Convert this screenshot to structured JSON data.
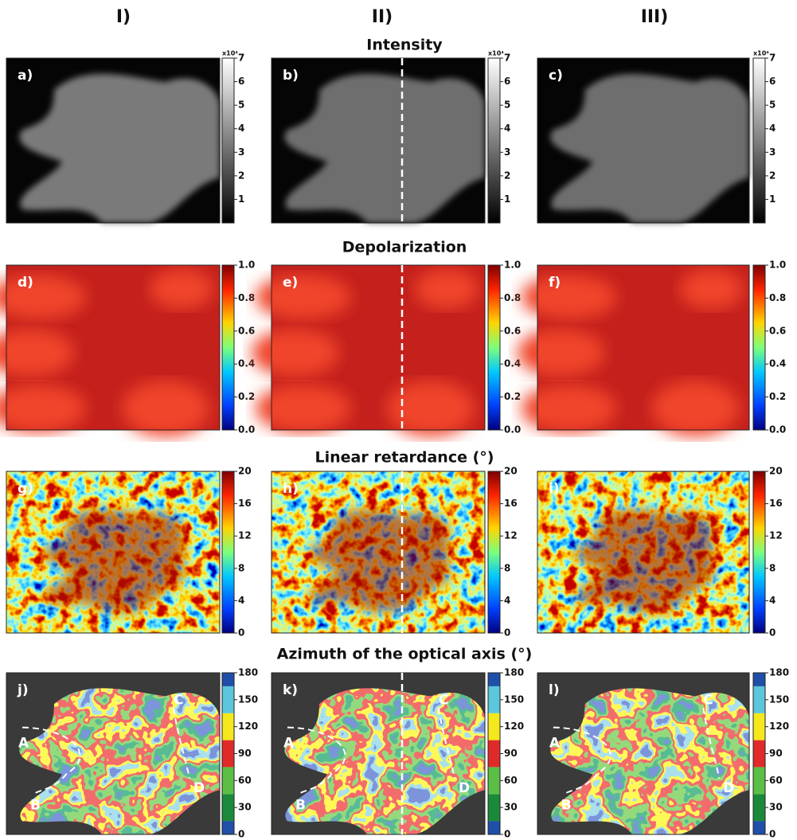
{
  "columns": [
    "I)",
    "II)",
    "III)"
  ],
  "rows": [
    {
      "title": "Intensity",
      "panels": [
        "a)",
        "b)",
        "c)"
      ],
      "colorbar": {
        "exponent_label": "x10⁴",
        "ticks": [
          "1",
          "2",
          "3",
          "4",
          "5",
          "6",
          "7"
        ]
      }
    },
    {
      "title": "Depolarization",
      "panels": [
        "d)",
        "e)",
        "f)"
      ],
      "colorbar": {
        "ticks": [
          "0.0",
          "0.2",
          "0.4",
          "0.6",
          "0.8",
          "1.0"
        ]
      }
    },
    {
      "title": "Linear retardance (°)",
      "panels": [
        "g)",
        "h)",
        "i)"
      ],
      "colorbar": {
        "ticks": [
          "0",
          "4",
          "8",
          "12",
          "16",
          "20"
        ]
      }
    },
    {
      "title": "Azimuth of the optical axis (°)",
      "panels": [
        "j)",
        "k)",
        "l)"
      ],
      "colorbar": {
        "ticks": [
          "0",
          "30",
          "60",
          "90",
          "120",
          "150",
          "180"
        ]
      }
    }
  ],
  "annotations": [
    "A",
    "B",
    "C",
    "D"
  ]
}
